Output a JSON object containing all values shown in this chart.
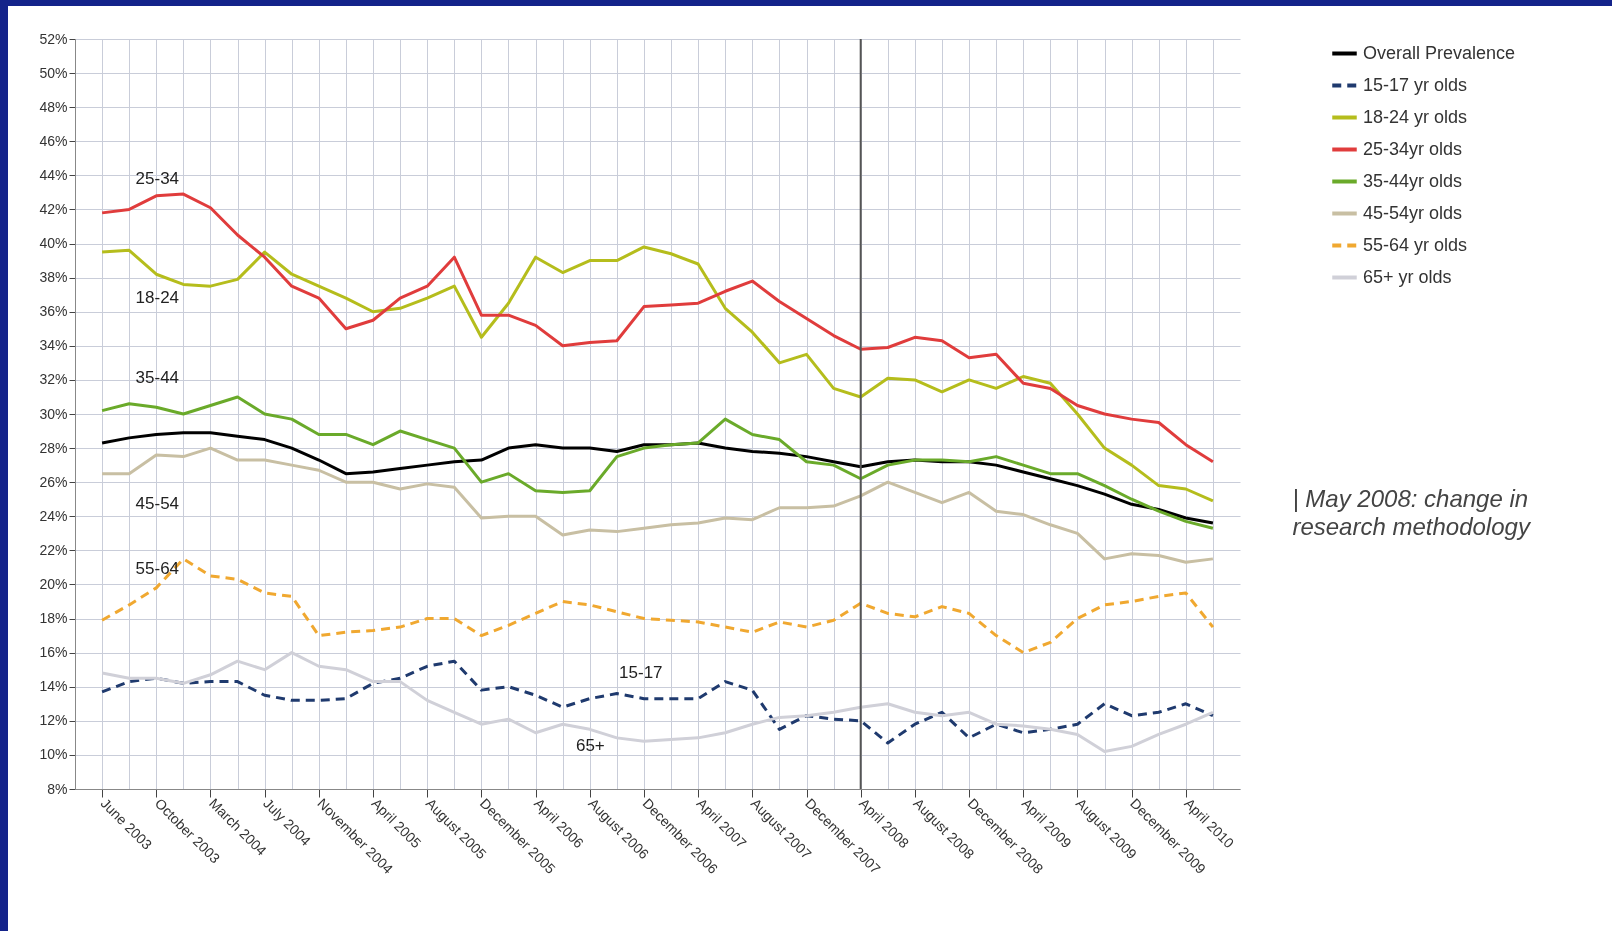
{
  "chart_data": {
    "type": "line",
    "categories": [
      "June 2003",
      null,
      "October 2003",
      null,
      "March 2004",
      null,
      "July 2004",
      null,
      "November 2004",
      null,
      "April 2005",
      null,
      "August 2005",
      null,
      "December 2005",
      null,
      "April 2006",
      null,
      "August 2006",
      null,
      "December 2006",
      null,
      "April 2007",
      null,
      "August 2007",
      null,
      "December 2007",
      null,
      "April 2008",
      null,
      "August 2008",
      null,
      "December 2008",
      null,
      "April 2009",
      null,
      "August 2009",
      null,
      "December 2009",
      null,
      "April 2010",
      null
    ],
    "series": [
      {
        "name": "Overall Prevalence",
        "color": "#000000",
        "line_style": "solid",
        "values": [
          28.3,
          28.6,
          28.8,
          28.9,
          28.9,
          28.7,
          28.5,
          28.0,
          27.3,
          26.5,
          26.6,
          26.8,
          27.0,
          27.2,
          27.3,
          28.0,
          28.2,
          28.0,
          28.0,
          27.8,
          28.2,
          28.2,
          28.3,
          28.0,
          27.8,
          27.7,
          27.5,
          27.2,
          26.9,
          27.2,
          27.3,
          27.2,
          27.2,
          27.0,
          26.6,
          26.2,
          25.8,
          25.3,
          24.7,
          24.4,
          23.9,
          23.6
        ]
      },
      {
        "name": "15-17 yr olds",
        "color": "#1f3a6e",
        "line_style": "dashed",
        "values": [
          13.7,
          14.3,
          14.5,
          14.2,
          14.3,
          14.3,
          13.5,
          13.2,
          13.2,
          13.3,
          14.2,
          14.5,
          15.2,
          15.5,
          13.8,
          14.0,
          13.5,
          12.8,
          13.3,
          13.6,
          13.3,
          13.3,
          13.3,
          14.3,
          13.8,
          11.5,
          12.3,
          12.1,
          12.0,
          10.7,
          11.8,
          12.5,
          11.0,
          11.8,
          11.3,
          11.5,
          11.8,
          13.0,
          12.3,
          12.5,
          13.0,
          12.3
        ]
      },
      {
        "name": "18-24 yr olds",
        "color": "#b5bd1c",
        "line_style": "solid",
        "values": [
          39.5,
          39.6,
          38.2,
          37.6,
          37.5,
          37.9,
          39.5,
          38.2,
          37.5,
          36.8,
          36.0,
          36.2,
          36.8,
          37.5,
          34.5,
          36.5,
          39.2,
          38.3,
          39.0,
          39.0,
          39.8,
          39.4,
          38.8,
          36.2,
          34.8,
          33.0,
          33.5,
          31.5,
          31.0,
          32.1,
          32.0,
          31.3,
          32.0,
          31.5,
          32.2,
          31.8,
          30.0,
          28.0,
          27.0,
          25.8,
          25.6,
          24.9
        ]
      },
      {
        "name": "25-34yr olds",
        "color": "#e03c3c",
        "line_style": "solid",
        "values": [
          41.8,
          42.0,
          42.8,
          42.9,
          42.1,
          40.5,
          39.2,
          37.5,
          36.8,
          35.0,
          35.5,
          36.8,
          37.5,
          39.2,
          35.8,
          35.8,
          35.2,
          34.0,
          34.2,
          34.3,
          36.3,
          36.4,
          36.5,
          37.2,
          37.8,
          36.6,
          35.6,
          34.6,
          33.8,
          33.9,
          34.5,
          34.3,
          33.3,
          33.5,
          31.8,
          31.5,
          30.5,
          30.0,
          29.7,
          29.5,
          28.2,
          27.2
        ]
      },
      {
        "name": "35-44yr olds",
        "color": "#6aaa2a",
        "line_style": "solid",
        "values": [
          30.2,
          30.6,
          30.4,
          30.0,
          30.5,
          31.0,
          30.0,
          29.7,
          28.8,
          28.8,
          28.2,
          29.0,
          28.5,
          28.0,
          26.0,
          26.5,
          25.5,
          25.4,
          25.5,
          27.5,
          28.0,
          28.2,
          28.3,
          29.7,
          28.8,
          28.5,
          27.2,
          27.0,
          26.2,
          27.0,
          27.3,
          27.3,
          27.2,
          27.5,
          27.0,
          26.5,
          26.5,
          25.8,
          25.0,
          24.3,
          23.7,
          23.3
        ]
      },
      {
        "name": "45-54yr olds",
        "color": "#c8bfa3",
        "line_style": "solid",
        "values": [
          26.5,
          26.5,
          27.6,
          27.5,
          28.0,
          27.3,
          27.3,
          27.0,
          26.7,
          26.0,
          26.0,
          25.6,
          25.9,
          25.7,
          23.9,
          24.0,
          24.0,
          22.9,
          23.2,
          23.1,
          23.3,
          23.5,
          23.6,
          23.9,
          23.8,
          24.5,
          24.5,
          24.6,
          25.2,
          26.0,
          25.4,
          24.8,
          25.4,
          24.3,
          24.1,
          23.5,
          23.0,
          21.5,
          21.8,
          21.7,
          21.3,
          21.5
        ]
      },
      {
        "name": "55-64 yr olds",
        "color": "#f0a830",
        "line_style": "dashed",
        "values": [
          17.9,
          18.8,
          19.8,
          21.5,
          20.5,
          20.3,
          19.5,
          19.3,
          17.0,
          17.2,
          17.3,
          17.5,
          18.0,
          18.0,
          17.0,
          17.6,
          18.3,
          19.0,
          18.8,
          18.4,
          18.0,
          17.9,
          17.8,
          17.5,
          17.2,
          17.8,
          17.5,
          17.9,
          18.9,
          18.3,
          18.1,
          18.7,
          18.3,
          17.0,
          16.0,
          16.6,
          18.0,
          18.8,
          19.0,
          19.3,
          19.5,
          17.5
        ]
      },
      {
        "name": "65+ yr olds",
        "color": "#d0d0d8",
        "line_style": "solid",
        "values": [
          14.8,
          14.5,
          14.5,
          14.2,
          14.7,
          15.5,
          15.0,
          16.0,
          15.2,
          15.0,
          14.3,
          14.3,
          13.2,
          12.5,
          11.8,
          12.1,
          11.3,
          11.8,
          11.5,
          11.0,
          10.8,
          10.9,
          11.0,
          11.3,
          11.8,
          12.2,
          12.3,
          12.5,
          12.8,
          13.0,
          12.5,
          12.3,
          12.5,
          11.8,
          11.7,
          11.5,
          11.2,
          10.2,
          10.5,
          11.2,
          11.8,
          12.5
        ]
      }
    ],
    "ylim": [
      8,
      52
    ],
    "yticks": [
      {
        "value": 8,
        "label": "8%"
      },
      {
        "value": 10,
        "label": "10%"
      },
      {
        "value": 12,
        "label": "12%"
      },
      {
        "value": 14,
        "label": "14%"
      },
      {
        "value": 16,
        "label": "16%"
      },
      {
        "value": 18,
        "label": "18%"
      },
      {
        "value": 20,
        "label": "20%"
      },
      {
        "value": 22,
        "label": "22%"
      },
      {
        "value": 24,
        "label": "24%"
      },
      {
        "value": 26,
        "label": "26%"
      },
      {
        "value": 28,
        "label": "28%"
      },
      {
        "value": 30,
        "label": "30%"
      },
      {
        "value": 32,
        "label": "32%"
      },
      {
        "value": 34,
        "label": "34%"
      },
      {
        "value": 36,
        "label": "36%"
      },
      {
        "value": 38,
        "label": "38%"
      },
      {
        "value": 40,
        "label": "40%"
      },
      {
        "value": 42,
        "label": "42%"
      },
      {
        "value": 44,
        "label": "44%"
      },
      {
        "value": 46,
        "label": "46%"
      },
      {
        "value": 48,
        "label": "48%"
      },
      {
        "value": 50,
        "label": "50%"
      },
      {
        "value": 52,
        "label": "52%"
      }
    ],
    "grid": true,
    "legend": "top right",
    "ref_lines": [
      {
        "axis": "x",
        "value": "April 2008",
        "color": "#555555"
      }
    ],
    "annotations": [
      "25-34",
      "18-24",
      "35-44",
      "45-54",
      "55-64",
      "15-17",
      "65+",
      "| May 2008: change in research methodology"
    ]
  }
}
